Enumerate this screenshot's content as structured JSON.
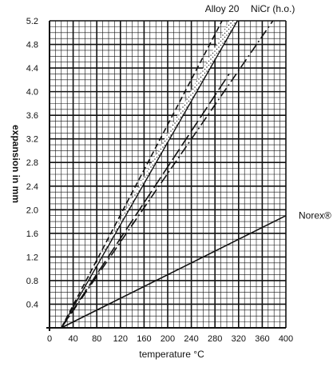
{
  "chart_data": {
    "type": "line",
    "title": "",
    "xlabel": "temperature °C",
    "ylabel": "expansion in mm",
    "xlim": [
      0,
      400
    ],
    "ylim": [
      0,
      5.2
    ],
    "x_ticks": [
      0,
      40,
      80,
      120,
      160,
      200,
      240,
      280,
      320,
      360,
      400
    ],
    "x_tick_labels": [
      "0",
      "40",
      "80",
      "120",
      "160",
      "200",
      "240",
      "280",
      "320",
      "360",
      "400"
    ],
    "y_ticks": [
      0.4,
      0.8,
      1.2,
      1.6,
      2.0,
      2.4,
      2.8,
      3.2,
      3.6,
      4.0,
      4.4,
      4.8,
      5.2
    ],
    "y_tick_labels": [
      "0.4",
      "0.8",
      "1.2",
      "1.6",
      "2.0",
      "2.4",
      "2.8",
      "3.2",
      "3.6",
      "4.0",
      "4.4",
      "4.8",
      "5.2"
    ],
    "grid": true,
    "grid_minor_x_step": 10,
    "grid_minor_y_step": 0.1,
    "band": {
      "name": "Alloy 20",
      "fill": "dotted",
      "upper": {
        "x": [
          20,
          304
        ],
        "y": [
          0,
          5.2
        ]
      },
      "lower": {
        "x": [
          20,
          318
        ],
        "y": [
          0,
          5.2
        ]
      }
    },
    "series": [
      {
        "name": "Alloy 20",
        "style": "dashed",
        "x": [
          20,
          292
        ],
        "y": [
          0,
          5.2
        ],
        "label_at": 292
      },
      {
        "name": "NiCr (h.o.)",
        "style": "dash-dot",
        "x": [
          20,
          378
        ],
        "y": [
          0,
          5.2
        ],
        "label_at": 378
      },
      {
        "name": "",
        "style": "long-dash",
        "x": [
          20,
          304
        ],
        "y": [
          0,
          4.3
        ]
      },
      {
        "name": "Norex®",
        "style": "solid",
        "x": [
          20,
          400
        ],
        "y": [
          0,
          1.9
        ],
        "label_at": 400
      }
    ],
    "colors": {
      "line": "#111111",
      "grid": "#111111",
      "background": "#ffffff"
    }
  }
}
